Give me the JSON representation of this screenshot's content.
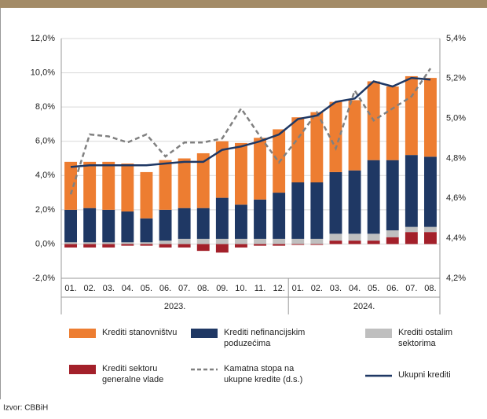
{
  "chart_data": {
    "type": "bar",
    "category_groups": [
      {
        "label": "2023.",
        "categories": [
          "01.",
          "02.",
          "03.",
          "04.",
          "05.",
          "06.",
          "07.",
          "08.",
          "09.",
          "10.",
          "11.",
          "12."
        ]
      },
      {
        "label": "2024.",
        "categories": [
          "01.",
          "02.",
          "03.",
          "04.",
          "05.",
          "06.",
          "07.",
          "08."
        ]
      }
    ],
    "series": [
      {
        "name": "Krediti sektoru\ngeneralne vlade",
        "type": "bar",
        "color": "#a3202a",
        "values": [
          -0.2,
          -0.2,
          -0.2,
          -0.1,
          -0.1,
          -0.2,
          -0.2,
          -0.4,
          -0.5,
          -0.2,
          -0.1,
          -0.1,
          -0.05,
          -0.05,
          0.2,
          0.2,
          0.2,
          0.4,
          0.7,
          0.7
        ]
      },
      {
        "name": "Krediti ostalim\nsektorima",
        "type": "bar",
        "color": "#bfbfbf",
        "values": [
          0.1,
          0.1,
          0.1,
          0.1,
          0.1,
          0.2,
          0.3,
          0.3,
          0.3,
          0.3,
          0.3,
          0.3,
          0.3,
          0.3,
          0.4,
          0.4,
          0.4,
          0.4,
          0.3,
          0.3
        ]
      },
      {
        "name": "Krediti nefinancijskim\npoduzećima",
        "type": "bar",
        "color": "#1f3864",
        "values": [
          1.9,
          2.0,
          1.9,
          1.8,
          1.4,
          1.8,
          1.8,
          1.8,
          2.4,
          2.0,
          2.3,
          2.7,
          3.3,
          3.3,
          3.6,
          3.7,
          4.3,
          4.1,
          4.2,
          4.1
        ]
      },
      {
        "name": "Krediti stanovništvu",
        "type": "bar",
        "color": "#ed7d31",
        "values": [
          2.8,
          2.7,
          2.8,
          2.8,
          2.7,
          2.9,
          2.9,
          3.2,
          3.3,
          3.6,
          3.6,
          3.7,
          3.8,
          4.1,
          4.1,
          4.1,
          4.6,
          4.3,
          4.6,
          4.6
        ]
      },
      {
        "name": "Kamatna stopa na\nukupne kredite (d.s.)",
        "type": "line",
        "axis": "y2",
        "dashed": true,
        "color": "#808080",
        "values": [
          4.62,
          4.92,
          4.91,
          4.88,
          4.92,
          4.81,
          4.88,
          4.88,
          4.9,
          5.05,
          4.91,
          4.78,
          4.9,
          5.03,
          4.85,
          5.14,
          4.99,
          5.05,
          5.11,
          5.25
        ]
      },
      {
        "name": "Ukupni krediti",
        "type": "line",
        "color": "#1f3864",
        "values": [
          4.5,
          4.6,
          4.6,
          4.6,
          4.6,
          4.7,
          4.8,
          4.8,
          5.5,
          5.7,
          6.0,
          6.4,
          7.3,
          7.5,
          8.3,
          8.5,
          9.5,
          9.2,
          9.7,
          9.6
        ]
      }
    ],
    "ylim": [
      -2,
      12
    ],
    "yticks": [
      {
        "value": -2,
        "label": "-2,0%"
      },
      {
        "value": 0,
        "label": "0,0%"
      },
      {
        "value": 2,
        "label": "2,0%"
      },
      {
        "value": 4,
        "label": "4,0%"
      },
      {
        "value": 6,
        "label": "6,0%"
      },
      {
        "value": 8,
        "label": "8,0%"
      },
      {
        "value": 10,
        "label": "10,0%"
      },
      {
        "value": 12,
        "label": "12,0%"
      }
    ],
    "y2lim": [
      4.2,
      5.4
    ],
    "y2ticks": [
      {
        "value": 4.2,
        "label": "4,2%"
      },
      {
        "value": 4.4,
        "label": "4,4%"
      },
      {
        "value": 4.6,
        "label": "4,6%"
      },
      {
        "value": 4.8,
        "label": "4,8%"
      },
      {
        "value": 5.0,
        "label": "5,0%"
      },
      {
        "value": 5.2,
        "label": "5,2%"
      },
      {
        "value": 5.4,
        "label": "5,4%"
      }
    ],
    "grid": true,
    "legend_order": [
      3,
      2,
      1,
      0,
      4,
      5
    ],
    "source": "Izvor: CBBiH"
  }
}
